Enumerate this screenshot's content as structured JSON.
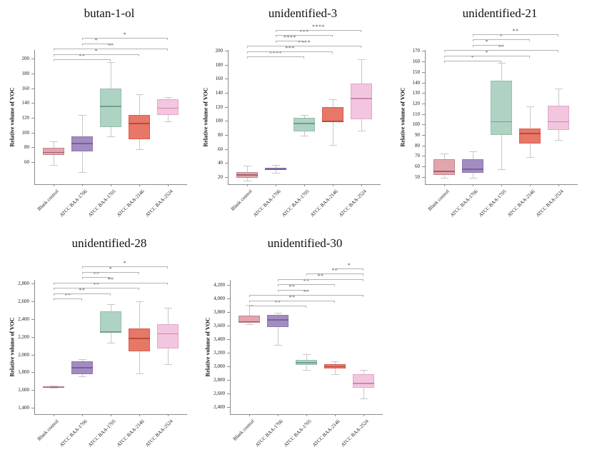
{
  "figure": {
    "background": "#ffffff",
    "description": "Five box plots of relative VOC volume by bacterial strain with significance brackets"
  },
  "categories": [
    "Blank control",
    "ATCC BAA-1706",
    "ATCC BAA-1705",
    "ATCC BAA-2146",
    "ATCC BAA-2524"
  ],
  "palette": [
    {
      "category": "Blank control",
      "fill": "#e2a5ae",
      "stroke": "#c2858f",
      "median": "#a55f6b"
    },
    {
      "category": "ATCC BAA-1706",
      "fill": "#a28cc1",
      "stroke": "#8d77ad",
      "median": "#77639a"
    },
    {
      "category": "ATCC BAA-1705",
      "fill": "#aed3c3",
      "stroke": "#97bfae",
      "median": "#74a08e"
    },
    {
      "category": "ATCC BAA-2146",
      "fill": "#e77767",
      "stroke": "#d95f4e",
      "median": "#bc4a3a"
    },
    {
      "category": "ATCC BAA-2524",
      "fill": "#f3c6df",
      "stroke": "#e0a8c7",
      "median": "#cb86af"
    }
  ],
  "style_colors": {
    "axis": "#8c8c8c",
    "whisker": "#c8c8c8",
    "bracket_line": "#b3b3b3",
    "sig_text": "#555555"
  },
  "chart_data": [
    {
      "type": "box",
      "title": "butan-1-ol",
      "ylabel": "Relative volume of VOC",
      "categories": [
        "Blank control",
        "ATCC BAA-1706",
        "ATCC BAA-1705",
        "ATCC BAA-2146",
        "ATCC BAA-2524"
      ],
      "ylim": [
        30,
        212
      ],
      "ytick_values": [
        60,
        80,
        100,
        120,
        140,
        160,
        180,
        200
      ],
      "ytick_labels": [
        "60",
        "80",
        "100",
        "120",
        "140",
        "160",
        "180",
        "200"
      ],
      "series": [
        {
          "category": "Blank control",
          "whislo": 56,
          "q1": 70,
          "med": 74,
          "q3": 79,
          "whishi": 88
        },
        {
          "category": "ATCC BAA-1706",
          "whislo": 46,
          "q1": 75,
          "med": 86,
          "q3": 95,
          "whishi": 124
        },
        {
          "category": "ATCC BAA-1705",
          "whislo": 95,
          "q1": 107,
          "med": 136,
          "q3": 160,
          "whishi": 196
        },
        {
          "category": "ATCC BAA-2146",
          "whislo": 77,
          "q1": 91,
          "med": 113,
          "q3": 124,
          "whishi": 152
        },
        {
          "category": "ATCC BAA-2524",
          "whislo": 115,
          "q1": 124,
          "med": 134,
          "q3": 145,
          "whishi": 148
        }
      ],
      "significance": [
        {
          "group1": "Blank control",
          "group2": "ATCC BAA-1705",
          "label": "**"
        },
        {
          "group1": "Blank control",
          "group2": "ATCC BAA-2146",
          "label": "*"
        },
        {
          "group1": "Blank control",
          "group2": "ATCC BAA-2524",
          "label": "**"
        },
        {
          "group1": "ATCC BAA-1706",
          "group2": "ATCC BAA-1705",
          "label": "*"
        },
        {
          "group1": "ATCC BAA-1706",
          "group2": "ATCC BAA-2524",
          "label": "*"
        }
      ]
    },
    {
      "type": "box",
      "title": "unidentified-3",
      "ylabel": "Relative volume of VOC",
      "categories": [
        "Blank control",
        "ATCC BAA-1706",
        "ATCC BAA-1705",
        "ATCC BAA-2146",
        "ATCC BAA-2524"
      ],
      "ylim": [
        10,
        201
      ],
      "ytick_values": [
        20,
        40,
        60,
        80,
        100,
        120,
        140,
        160,
        180,
        200
      ],
      "ytick_labels": [
        "20",
        "40",
        "60",
        "80",
        "100",
        "120",
        "140",
        "160",
        "180",
        "200"
      ],
      "series": [
        {
          "category": "Blank control",
          "whislo": 15,
          "q1": 19,
          "med": 24,
          "q3": 27,
          "whishi": 36
        },
        {
          "category": "ATCC BAA-1706",
          "whislo": 26,
          "q1": 30,
          "med": 32,
          "q3": 33,
          "whishi": 37
        },
        {
          "category": "ATCC BAA-1705",
          "whislo": 79,
          "q1": 85,
          "med": 97,
          "q3": 104,
          "whishi": 109
        },
        {
          "category": "ATCC BAA-2146",
          "whislo": 66,
          "q1": 98,
          "med": 100,
          "q3": 120,
          "whishi": 131
        },
        {
          "category": "ATCC BAA-2524",
          "whislo": 86,
          "q1": 102,
          "med": 133,
          "q3": 153,
          "whishi": 188
        }
      ],
      "significance": [
        {
          "group1": "Blank control",
          "group2": "ATCC BAA-1705",
          "label": "****"
        },
        {
          "group1": "Blank control",
          "group2": "ATCC BAA-2146",
          "label": "***"
        },
        {
          "group1": "Blank control",
          "group2": "ATCC BAA-2524",
          "label": "****"
        },
        {
          "group1": "ATCC BAA-1706",
          "group2": "ATCC BAA-1705",
          "label": "****"
        },
        {
          "group1": "ATCC BAA-1706",
          "group2": "ATCC BAA-2146",
          "label": "***"
        },
        {
          "group1": "ATCC BAA-1706",
          "group2": "ATCC BAA-2524",
          "label": "****"
        }
      ]
    },
    {
      "type": "box",
      "title": "unidentified-21",
      "ylabel": "Relative volume of VOC",
      "categories": [
        "Blank control",
        "ATCC BAA-1706",
        "ATCC BAA-1705",
        "ATCC BAA-2146",
        "ATCC BAA-2524"
      ],
      "ylim": [
        43,
        171
      ],
      "ytick_values": [
        50,
        60,
        70,
        80,
        90,
        100,
        110,
        120,
        130,
        140,
        150,
        160,
        170
      ],
      "ytick_labels": [
        "50",
        "60",
        "70",
        "80",
        "90",
        "100",
        "110",
        "120",
        "130",
        "140",
        "150",
        "160",
        "170"
      ],
      "series": [
        {
          "category": "Blank control",
          "whislo": 49,
          "q1": 52,
          "med": 56,
          "q3": 67,
          "whishi": 72
        },
        {
          "category": "ATCC BAA-1706",
          "whislo": 49,
          "q1": 54,
          "med": 58,
          "q3": 67,
          "whishi": 74
        },
        {
          "category": "ATCC BAA-1705",
          "whislo": 57,
          "q1": 90,
          "med": 103,
          "q3": 142,
          "whishi": 159
        },
        {
          "category": "ATCC BAA-2146",
          "whislo": 69,
          "q1": 82,
          "med": 92,
          "q3": 96,
          "whishi": 117
        },
        {
          "category": "ATCC BAA-2524",
          "whislo": 85,
          "q1": 95,
          "med": 103,
          "q3": 118,
          "whishi": 134
        }
      ],
      "significance": [
        {
          "group1": "Blank control",
          "group2": "ATCC BAA-1705",
          "label": "*"
        },
        {
          "group1": "Blank control",
          "group2": "ATCC BAA-2146",
          "label": "*"
        },
        {
          "group1": "Blank control",
          "group2": "ATCC BAA-2524",
          "label": "**"
        },
        {
          "group1": "ATCC BAA-1706",
          "group2": "ATCC BAA-1705",
          "label": "*"
        },
        {
          "group1": "ATCC BAA-1706",
          "group2": "ATCC BAA-2146",
          "label": "*"
        },
        {
          "group1": "ATCC BAA-1706",
          "group2": "ATCC BAA-2524",
          "label": "**"
        }
      ]
    },
    {
      "type": "box",
      "title": "unidentified-28",
      "ylabel": "Relative volume of VOC",
      "categories": [
        "Blank control",
        "ATCC BAA-1706",
        "ATCC BAA-1705",
        "ATCC BAA-2146",
        "ATCC BAA-2524"
      ],
      "ylim": [
        1330,
        2840
      ],
      "ytick_values": [
        1400,
        1600,
        1800,
        2000,
        2200,
        2400,
        2600,
        2800
      ],
      "ytick_labels": [
        "1,400",
        "1,600",
        "1,800",
        "2,000",
        "2,200",
        "2,400",
        "2,600",
        "2,800"
      ],
      "series": [
        {
          "category": "Blank control",
          "whislo": 1628,
          "q1": 1636,
          "med": 1641,
          "q3": 1647,
          "whishi": 1655
        },
        {
          "category": "ATCC BAA-1706",
          "whislo": 1755,
          "q1": 1780,
          "med": 1860,
          "q3": 1925,
          "whishi": 1950
        },
        {
          "category": "ATCC BAA-1705",
          "whislo": 2130,
          "q1": 2248,
          "med": 2258,
          "q3": 2490,
          "whishi": 2565
        },
        {
          "category": "ATCC BAA-2146",
          "whislo": 1785,
          "q1": 2040,
          "med": 2190,
          "q3": 2295,
          "whishi": 2600
        },
        {
          "category": "ATCC BAA-2524",
          "whislo": 1890,
          "q1": 2070,
          "med": 2240,
          "q3": 2345,
          "whishi": 2525
        }
      ],
      "significance": [
        {
          "group1": "Blank control",
          "group2": "ATCC BAA-1706",
          "label": "**"
        },
        {
          "group1": "Blank control",
          "group2": "ATCC BAA-1705",
          "label": "**"
        },
        {
          "group1": "Blank control",
          "group2": "ATCC BAA-2146",
          "label": "**"
        },
        {
          "group1": "Blank control",
          "group2": "ATCC BAA-2524",
          "label": "**"
        },
        {
          "group1": "ATCC BAA-1706",
          "group2": "ATCC BAA-1705",
          "label": "**"
        },
        {
          "group1": "ATCC BAA-1706",
          "group2": "ATCC BAA-2146",
          "label": "*"
        },
        {
          "group1": "ATCC BAA-1706",
          "group2": "ATCC BAA-2524",
          "label": "*"
        }
      ]
    },
    {
      "type": "box",
      "title": "unidentified-30",
      "ylabel": "Relative volume of VOC",
      "categories": [
        "Blank control",
        "ATCC BAA-1706",
        "ATCC BAA-1705",
        "ATCC BAA-2146",
        "ATCC BAA-2524"
      ],
      "ylim": [
        2290,
        4270
      ],
      "ytick_values": [
        2400,
        2600,
        2800,
        3000,
        3200,
        3400,
        3600,
        3800,
        4000,
        4200
      ],
      "ytick_labels": [
        "2,400",
        "2,600",
        "2,800",
        "3,000",
        "3,200",
        "3,400",
        "3,600",
        "3,800",
        "4,000",
        "4,200"
      ],
      "series": [
        {
          "category": "Blank control",
          "whislo": 3620,
          "q1": 3640,
          "med": 3663,
          "q3": 3745,
          "whishi": 3905
        },
        {
          "category": "ATCC BAA-1706",
          "whislo": 3315,
          "q1": 3580,
          "med": 3690,
          "q3": 3755,
          "whishi": 3790
        },
        {
          "category": "ATCC BAA-1705",
          "whislo": 2945,
          "q1": 3020,
          "med": 3055,
          "q3": 3090,
          "whishi": 3175
        },
        {
          "category": "ATCC BAA-2146",
          "whislo": 2875,
          "q1": 2960,
          "med": 3000,
          "q3": 3025,
          "whishi": 3065
        },
        {
          "category": "ATCC BAA-2524",
          "whislo": 2525,
          "q1": 2680,
          "med": 2750,
          "q3": 2875,
          "whishi": 2945
        }
      ],
      "significance": [
        {
          "group1": "Blank control",
          "group2": "ATCC BAA-1705",
          "label": "**"
        },
        {
          "group1": "Blank control",
          "group2": "ATCC BAA-2146",
          "label": "**"
        },
        {
          "group1": "Blank control",
          "group2": "ATCC BAA-2524",
          "label": "**"
        },
        {
          "group1": "ATCC BAA-1706",
          "group2": "ATCC BAA-1705",
          "label": "**"
        },
        {
          "group1": "ATCC BAA-1706",
          "group2": "ATCC BAA-2146",
          "label": "**"
        },
        {
          "group1": "ATCC BAA-1706",
          "group2": "ATCC BAA-2524",
          "label": "**"
        },
        {
          "group1": "ATCC BAA-1705",
          "group2": "ATCC BAA-2524",
          "label": "**"
        },
        {
          "group1": "ATCC BAA-2146",
          "group2": "ATCC BAA-2524",
          "label": "*"
        }
      ]
    }
  ]
}
